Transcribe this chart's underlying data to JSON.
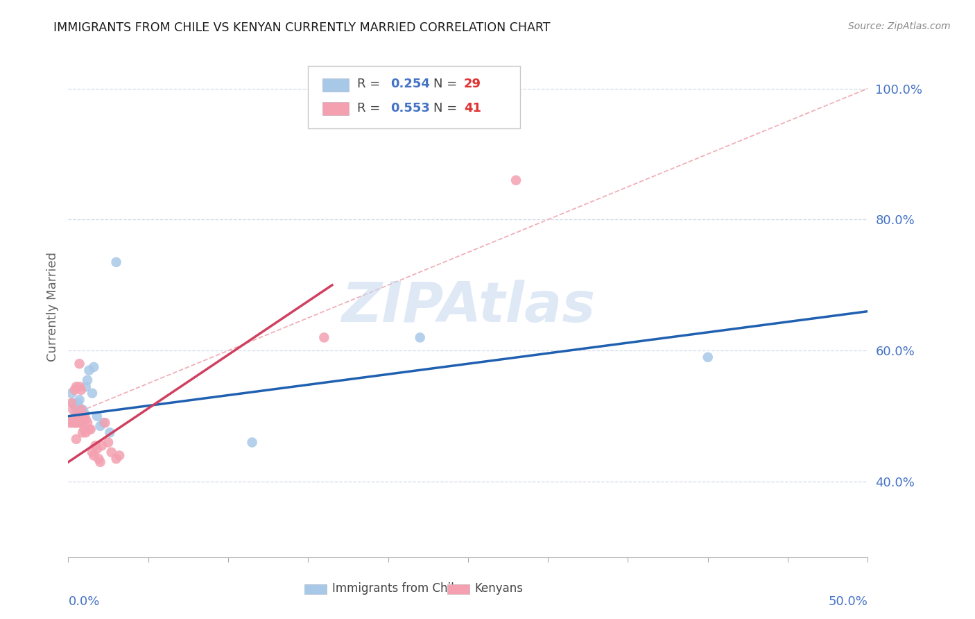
{
  "title": "IMMIGRANTS FROM CHILE VS KENYAN CURRENTLY MARRIED CORRELATION CHART",
  "source": "Source: ZipAtlas.com",
  "ylabel": "Currently Married",
  "xmin": 0.0,
  "xmax": 0.5,
  "ymin": 0.285,
  "ymax": 1.05,
  "yticks": [
    0.4,
    0.6,
    0.8,
    1.0
  ],
  "ytick_labels": [
    "40.0%",
    "60.0%",
    "80.0%",
    "100.0%"
  ],
  "blue_color": "#a8c8e8",
  "pink_color": "#f4a0b0",
  "blue_line_color": "#2060b0",
  "pink_line_color": "#d04060",
  "ref_line_color": "#f0b0b8",
  "watermark": "ZIPAtlas",
  "blue_scatter_x": [
    0.002,
    0.003,
    0.004,
    0.005,
    0.005,
    0.006,
    0.006,
    0.007,
    0.007,
    0.008,
    0.008,
    0.008,
    0.009,
    0.009,
    0.01,
    0.01,
    0.011,
    0.012,
    0.013,
    0.015,
    0.016,
    0.018,
    0.02,
    0.022,
    0.026,
    0.03,
    0.115,
    0.22,
    0.4
  ],
  "blue_scatter_y": [
    0.535,
    0.52,
    0.49,
    0.505,
    0.51,
    0.52,
    0.515,
    0.5,
    0.525,
    0.505,
    0.51,
    0.495,
    0.51,
    0.495,
    0.505,
    0.5,
    0.545,
    0.555,
    0.57,
    0.535,
    0.575,
    0.5,
    0.485,
    0.49,
    0.475,
    0.735,
    0.46,
    0.62,
    0.59
  ],
  "pink_scatter_x": [
    0.001,
    0.002,
    0.002,
    0.003,
    0.003,
    0.004,
    0.004,
    0.005,
    0.005,
    0.005,
    0.006,
    0.006,
    0.007,
    0.007,
    0.007,
    0.008,
    0.008,
    0.008,
    0.009,
    0.009,
    0.01,
    0.01,
    0.011,
    0.011,
    0.012,
    0.013,
    0.014,
    0.015,
    0.016,
    0.017,
    0.018,
    0.019,
    0.02,
    0.021,
    0.023,
    0.025,
    0.027,
    0.03,
    0.032,
    0.16,
    0.28
  ],
  "pink_scatter_y": [
    0.49,
    0.52,
    0.49,
    0.51,
    0.495,
    0.54,
    0.49,
    0.545,
    0.49,
    0.465,
    0.49,
    0.5,
    0.58,
    0.545,
    0.5,
    0.54,
    0.51,
    0.49,
    0.475,
    0.5,
    0.48,
    0.5,
    0.475,
    0.495,
    0.49,
    0.48,
    0.48,
    0.445,
    0.44,
    0.455,
    0.45,
    0.435,
    0.43,
    0.455,
    0.49,
    0.46,
    0.445,
    0.435,
    0.44,
    0.62,
    0.86
  ],
  "blue_trend_x0": 0.0,
  "blue_trend_x1": 0.5,
  "blue_trend_y0": 0.5,
  "blue_trend_y1": 0.66,
  "pink_trend_x0": 0.0,
  "pink_trend_x1": 0.165,
  "pink_trend_y0": 0.43,
  "pink_trend_y1": 0.7,
  "ref_line_x0": 0.0,
  "ref_line_x1": 0.5,
  "ref_line_y0": 0.5,
  "ref_line_y1": 1.0,
  "grid_color": "#d0d8e8",
  "legend_r_blue": "0.254",
  "legend_n_blue": "29",
  "legend_r_pink": "0.553",
  "legend_n_pink": "41"
}
